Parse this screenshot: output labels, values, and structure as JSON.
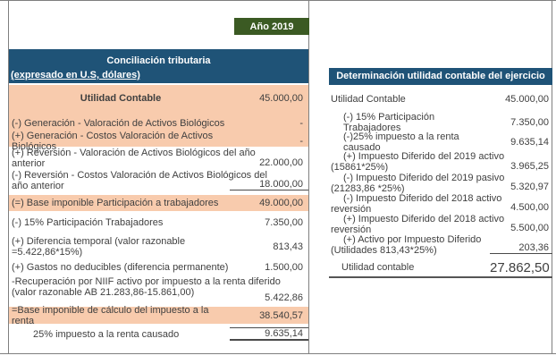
{
  "year_badge": {
    "label": "Año 2019"
  },
  "left_table": {
    "title": "Conciliación tributaria",
    "subtitle": "(expresado en U.S, dólares)",
    "rows": [
      {
        "label": "Utilidad Contable",
        "value": "45.000,00"
      },
      {
        "label": "(-) Generación - Valoración de Activos Biológicos",
        "value": "-"
      },
      {
        "label": "(+) Generación - Costos Valoración de Activos Biológicos",
        "value": "-"
      },
      {
        "label": "(+) Reversión - Valoración de Activos Biológicos del año anterior",
        "value": "22.000,00"
      },
      {
        "label": "(-) Reversión - Costos Valoración de Activos Biológicos del año anterior",
        "value": "18.000,00"
      },
      {
        "label": "(=) Base imponible Participación a trabajadores",
        "value": "49.000,00"
      },
      {
        "label": "(-) 15% Participación Trabajadores",
        "value": "7.350,00"
      },
      {
        "label": "(+) Diferencia temporal (valor razonable =5.422,86*15%)",
        "value": "813,43"
      },
      {
        "label": "(+) Gastos no deducibles (diferencia permanente)",
        "value": "1.500,00"
      },
      {
        "label": "-Recuperación por NIIF activo por impuesto a la renta diferido (valor razonable AB 21.283,86-15.861,00)",
        "value": "5.422,86"
      },
      {
        "label": "=Base imponible de cálculo del impuesto a la renta",
        "value": "38.540,57"
      },
      {
        "label": "25% impuesto a la renta causado",
        "value": "9.635,14"
      }
    ]
  },
  "right_table": {
    "title": "Determinación utilidad contable del ejercicio",
    "rows": [
      {
        "label": "Utilidad Contable",
        "value": "45.000,00"
      },
      {
        "label": "(-) 15% Participación Trabajadores",
        "value": "7.350,00"
      },
      {
        "label": "(-)25% impuesto a la renta causado",
        "value": "9.635,14"
      },
      {
        "label": "(+) Impuesto Diferido del 2019 activo (15861*25%)",
        "value": "3.965,25"
      },
      {
        "label": "(-) Impuesto Diferido del 2019 pasivo (21283,86 *25%)",
        "value": "5.320,97"
      },
      {
        "label": "(-) Impuesto Diferido del 2018 activo reversión",
        "value": "4.500,00"
      },
      {
        "label": "(+) Impuesto Diferido del 2018 activo reversión",
        "value": "5.500,00"
      },
      {
        "label": "(+) Activo por Impuesto Diferido (Utilidades 813,43*25%)",
        "value": "203,36"
      },
      {
        "label": "Utilidad contable",
        "value": "27.862,50"
      }
    ]
  },
  "colors": {
    "header_blue": "#1f5377",
    "row_peach": "#f8cbad",
    "badge_green": "#3b5a23",
    "frame_gray": "#7f7f7f"
  }
}
